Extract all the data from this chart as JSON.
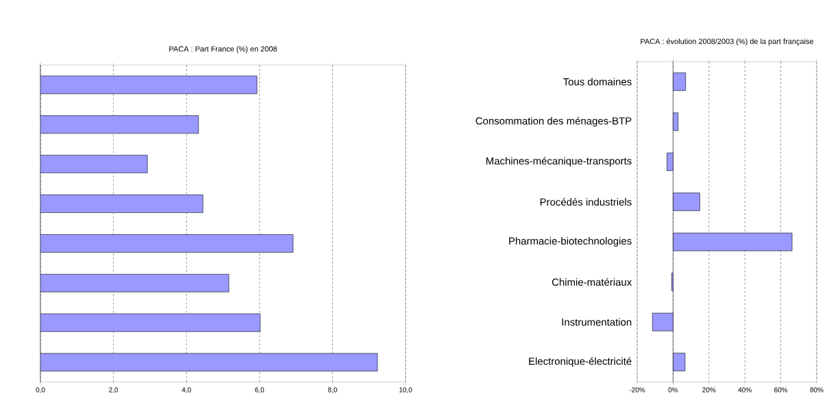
{
  "chart_data": [
    {
      "type": "bar",
      "orientation": "horizontal",
      "title": "PACA : Part France (%) en 2008",
      "categories": [
        null,
        null,
        null,
        null,
        null,
        null,
        null,
        null
      ],
      "values": [
        5.93,
        4.33,
        2.93,
        4.45,
        6.92,
        5.16,
        6.02,
        9.23
      ],
      "color": "#9999ff",
      "xlim": [
        0,
        10
      ],
      "xticks": [
        {
          "value": 0,
          "label": "0,0"
        },
        {
          "value": 2,
          "label": "2,0"
        },
        {
          "value": 4,
          "label": "4,0"
        },
        {
          "value": 6,
          "label": "6,0"
        },
        {
          "value": 8,
          "label": "8,0"
        },
        {
          "value": 10,
          "label": "10,0"
        }
      ],
      "grid": "x",
      "tick_labels": "x"
    },
    {
      "type": "bar",
      "orientation": "horizontal",
      "title": "PACA : évolution 2008/2003 (%) de la part française",
      "categories": [
        "Tous domaines",
        "Consommation des ménages-BTP",
        "Machines-mécanique-transports",
        "Procédés industriels",
        "Pharmacie-biotechnologies",
        "Chimie-matériaux",
        "Instrumentation",
        "Electronique-électricité"
      ],
      "values": [
        7.0,
        2.8,
        -3.4,
        14.9,
        66.3,
        -0.8,
        -11.5,
        6.7
      ],
      "color": "#9999ff",
      "xlim": [
        -20,
        80
      ],
      "xticks": [
        {
          "value": -20,
          "label": "-20%"
        },
        {
          "value": 0,
          "label": "0%"
        },
        {
          "value": 20,
          "label": "20%"
        },
        {
          "value": 40,
          "label": "40%"
        },
        {
          "value": 60,
          "label": "60%"
        },
        {
          "value": 80,
          "label": "80%"
        }
      ],
      "grid": "x"
    }
  ]
}
